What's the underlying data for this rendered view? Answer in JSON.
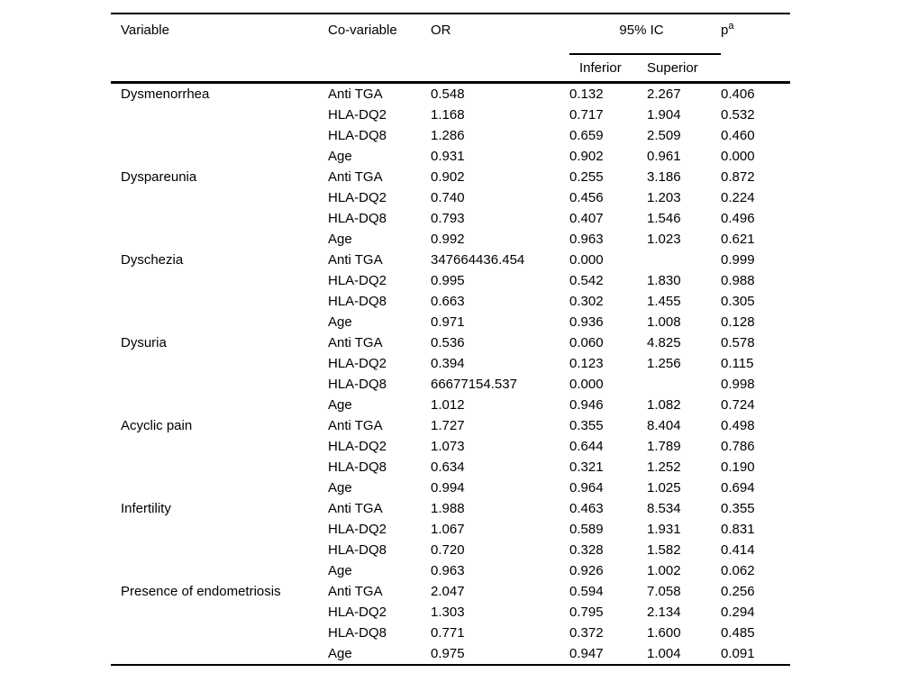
{
  "colors": {
    "background": "#ffffff",
    "text": "#000000",
    "rule": "#000000"
  },
  "table": {
    "header": {
      "variable": "Variable",
      "co_variable": "Co-variable",
      "or": "OR",
      "ic_group": "95% IC",
      "inferior": "Inferior",
      "superior": "Superior",
      "p": "p",
      "p_superscript": "a"
    },
    "groups": [
      {
        "variable": "Dysmenorrhea",
        "rows": [
          {
            "co_variable": "Anti TGA",
            "or": "0.548",
            "inferior": "0.132",
            "superior": "2.267",
            "p": "0.406"
          },
          {
            "co_variable": "HLA-DQ2",
            "or": "1.168",
            "inferior": "0.717",
            "superior": "1.904",
            "p": "0.532"
          },
          {
            "co_variable": "HLA-DQ8",
            "or": "1.286",
            "inferior": "0.659",
            "superior": "2.509",
            "p": "0.460"
          },
          {
            "co_variable": "Age",
            "or": "0.931",
            "inferior": "0.902",
            "superior": "0.961",
            "p": "0.000"
          }
        ]
      },
      {
        "variable": "Dyspareunia",
        "rows": [
          {
            "co_variable": "Anti TGA",
            "or": "0.902",
            "inferior": "0.255",
            "superior": "3.186",
            "p": "0.872"
          },
          {
            "co_variable": "HLA-DQ2",
            "or": "0.740",
            "inferior": "0.456",
            "superior": "1.203",
            "p": "0.224"
          },
          {
            "co_variable": "HLA-DQ8",
            "or": "0.793",
            "inferior": "0.407",
            "superior": "1.546",
            "p": "0.496"
          },
          {
            "co_variable": "Age",
            "or": "0.992",
            "inferior": "0.963",
            "superior": "1.023",
            "p": "0.621"
          }
        ]
      },
      {
        "variable": "Dyschezia",
        "rows": [
          {
            "co_variable": "Anti TGA",
            "or": "347664436.454",
            "inferior": "0.000",
            "superior": "",
            "p": "0.999"
          },
          {
            "co_variable": "HLA-DQ2",
            "or": "0.995",
            "inferior": "0.542",
            "superior": "1.830",
            "p": "0.988"
          },
          {
            "co_variable": "HLA-DQ8",
            "or": "0.663",
            "inferior": "0.302",
            "superior": "1.455",
            "p": "0.305"
          },
          {
            "co_variable": "Age",
            "or": "0.971",
            "inferior": "0.936",
            "superior": "1.008",
            "p": "0.128"
          }
        ]
      },
      {
        "variable": "Dysuria",
        "rows": [
          {
            "co_variable": "Anti TGA",
            "or": "0.536",
            "inferior": "0.060",
            "superior": "4.825",
            "p": "0.578"
          },
          {
            "co_variable": "HLA-DQ2",
            "or": "0.394",
            "inferior": "0.123",
            "superior": "1.256",
            "p": "0.115"
          },
          {
            "co_variable": "HLA-DQ8",
            "or": "66677154.537",
            "inferior": "0.000",
            "superior": "",
            "p": "0.998"
          },
          {
            "co_variable": "Age",
            "or": "1.012",
            "inferior": "0.946",
            "superior": "1.082",
            "p": "0.724"
          }
        ]
      },
      {
        "variable": "Acyclic pain",
        "rows": [
          {
            "co_variable": "Anti TGA",
            "or": "1.727",
            "inferior": "0.355",
            "superior": "8.404",
            "p": "0.498"
          },
          {
            "co_variable": "HLA-DQ2",
            "or": "1.073",
            "inferior": "0.644",
            "superior": "1.789",
            "p": "0.786"
          },
          {
            "co_variable": "HLA-DQ8",
            "or": "0.634",
            "inferior": "0.321",
            "superior": "1.252",
            "p": "0.190"
          },
          {
            "co_variable": "Age",
            "or": "0.994",
            "inferior": "0.964",
            "superior": "1.025",
            "p": "0.694"
          }
        ]
      },
      {
        "variable": "Infertility",
        "rows": [
          {
            "co_variable": "Anti TGA",
            "or": "1.988",
            "inferior": "0.463",
            "superior": "8.534",
            "p": "0.355"
          },
          {
            "co_variable": "HLA-DQ2",
            "or": "1.067",
            "inferior": "0.589",
            "superior": "1.931",
            "p": "0.831"
          },
          {
            "co_variable": "HLA-DQ8",
            "or": "0.720",
            "inferior": "0.328",
            "superior": "1.582",
            "p": "0.414"
          },
          {
            "co_variable": "Age",
            "or": "0.963",
            "inferior": "0.926",
            "superior": "1.002",
            "p": "0.062"
          }
        ]
      },
      {
        "variable": "Presence of endometriosis",
        "rows": [
          {
            "co_variable": "Anti TGA",
            "or": "2.047",
            "inferior": "0.594",
            "superior": "7.058",
            "p": "0.256"
          },
          {
            "co_variable": "HLA-DQ2",
            "or": "1.303",
            "inferior": "0.795",
            "superior": "2.134",
            "p": "0.294"
          },
          {
            "co_variable": "HLA-DQ8",
            "or": "0.771",
            "inferior": "0.372",
            "superior": "1.600",
            "p": "0.485"
          },
          {
            "co_variable": "Age",
            "or": "0.975",
            "inferior": "0.947",
            "superior": "1.004",
            "p": "0.091"
          }
        ]
      }
    ]
  }
}
